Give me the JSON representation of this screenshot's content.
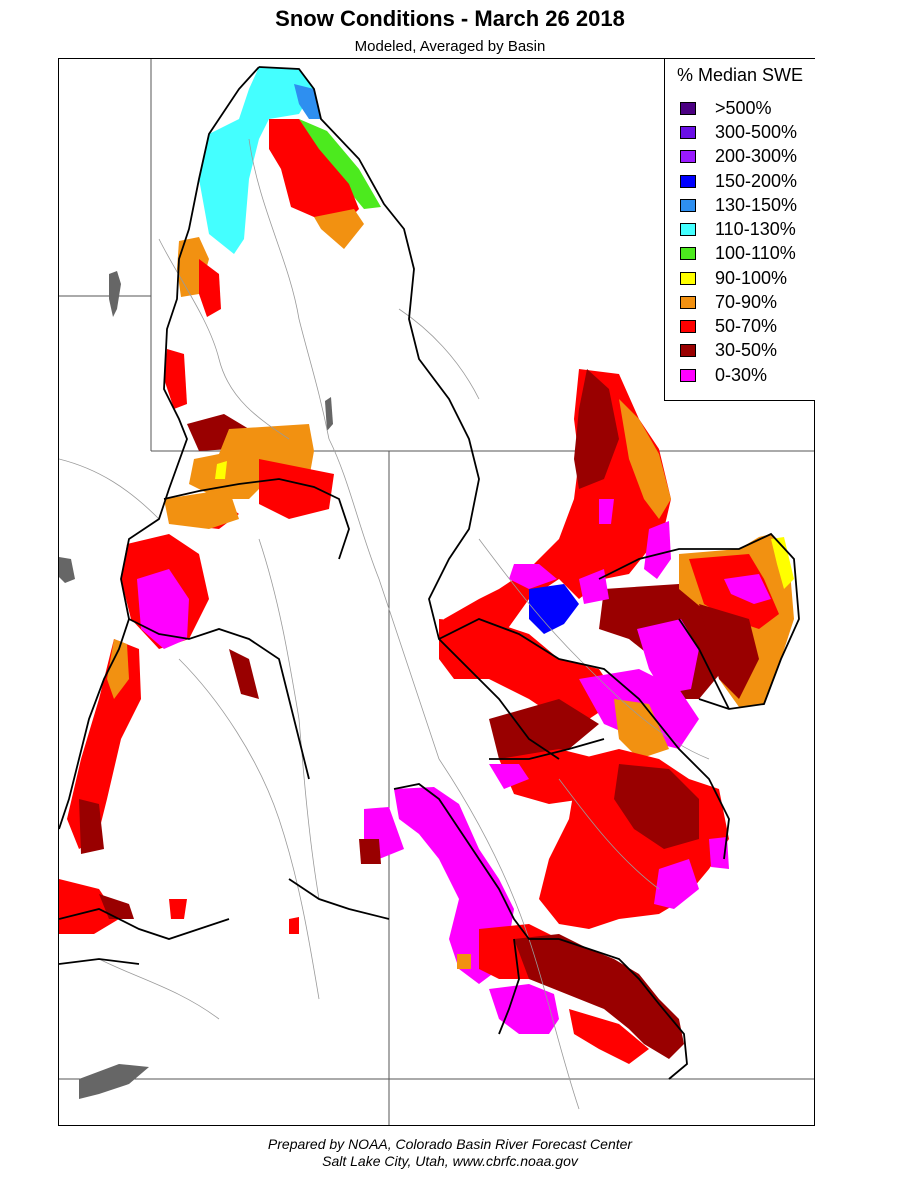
{
  "title": "Snow Conditions - March 26 2018",
  "subtitle": "Modeled, Averaged by Basin",
  "legend": {
    "title": "% Median SWE",
    "items": [
      {
        "label": ">500%",
        "color": "#4b0082"
      },
      {
        "label": "300-500%",
        "color": "#6a0fe6"
      },
      {
        "label": "200-300%",
        "color": "#9a1aff"
      },
      {
        "label": "150-200%",
        "color": "#0000ff"
      },
      {
        "label": "130-150%",
        "color": "#2e8ff0"
      },
      {
        "label": "110-130%",
        "color": "#44ffff"
      },
      {
        "label": "100-110%",
        "color": "#4cea1e"
      },
      {
        "label": "90-100%",
        "color": "#ffff00"
      },
      {
        "label": "70-90%",
        "color": "#f29111"
      },
      {
        "label": "50-70%",
        "color": "#ff0000"
      },
      {
        "label": "30-50%",
        "color": "#990000"
      },
      {
        "label": "0-30%",
        "color": "#ff00ff"
      }
    ]
  },
  "footer": {
    "line1": "Prepared by NOAA, Colorado Basin River Forecast Center",
    "line2": "Salt Lake City, Utah, www.cbrfc.noaa.gov"
  }
}
